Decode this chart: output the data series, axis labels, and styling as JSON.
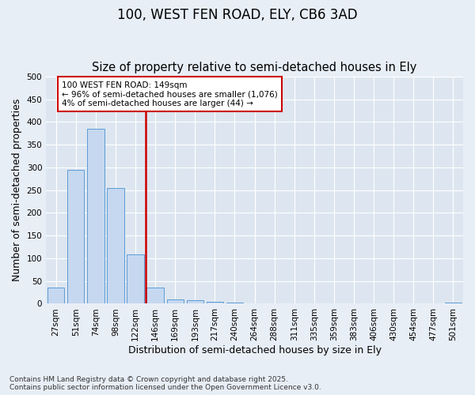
{
  "title1": "100, WEST FEN ROAD, ELY, CB6 3AD",
  "title2": "Size of property relative to semi-detached houses in Ely",
  "xlabel": "Distribution of semi-detached houses by size in Ely",
  "ylabel": "Number of semi-detached properties",
  "categories": [
    "27sqm",
    "51sqm",
    "74sqm",
    "98sqm",
    "122sqm",
    "146sqm",
    "169sqm",
    "193sqm",
    "217sqm",
    "240sqm",
    "264sqm",
    "288sqm",
    "311sqm",
    "335sqm",
    "359sqm",
    "383sqm",
    "406sqm",
    "430sqm",
    "454sqm",
    "477sqm",
    "501sqm"
  ],
  "values": [
    35,
    295,
    385,
    255,
    108,
    35,
    10,
    8,
    5,
    3,
    0,
    0,
    0,
    0,
    0,
    0,
    0,
    0,
    0,
    0,
    3
  ],
  "bar_color": "#c5d8f0",
  "bar_edge_color": "#5b9bd5",
  "vline_color": "#cc0000",
  "vline_x": 4.5,
  "annotation_text": "100 WEST FEN ROAD: 149sqm\n← 96% of semi-detached houses are smaller (1,076)\n4% of semi-detached houses are larger (44) →",
  "annotation_box_color": "#cc0000",
  "ylim": [
    0,
    500
  ],
  "yticks": [
    0,
    50,
    100,
    150,
    200,
    250,
    300,
    350,
    400,
    450,
    500
  ],
  "background_color": "#dde6f0",
  "fig_background_color": "#e8eef6",
  "grid_color": "#ffffff",
  "footer": "Contains HM Land Registry data © Crown copyright and database right 2025.\nContains public sector information licensed under the Open Government Licence v3.0.",
  "title_fontsize": 12,
  "subtitle_fontsize": 10.5,
  "tick_fontsize": 7.5,
  "label_fontsize": 9
}
